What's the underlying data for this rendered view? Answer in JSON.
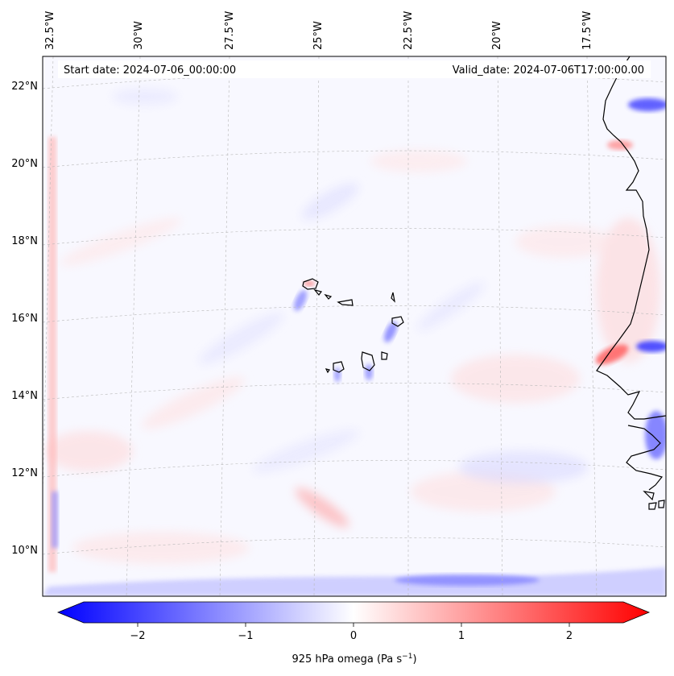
{
  "header": {
    "start_date": "Start date: 2024-07-06_00:00:00",
    "valid_date": "Valid_date: 2024-07-06T17:00:00.00"
  },
  "map": {
    "projection": "conic",
    "lon_labels": [
      "32.5°W",
      "30°W",
      "27.5°W",
      "25°W",
      "22.5°W",
      "20°W",
      "17.5°W"
    ],
    "lat_labels": [
      "22°N",
      "20°N",
      "18°N",
      "16°N",
      "14°N",
      "12°N",
      "10°N"
    ],
    "gridlines": "dashed",
    "field": "925 hPa omega",
    "features": [
      "Cabo Verde islands",
      "West African coastline (Mauritania, Senegal, Gambia, Guinea-Bissau)"
    ]
  },
  "colorbar": {
    "label_prefix": "925 hPa omega (Pa s",
    "label_sup": "−1",
    "label_suffix": ")",
    "ticks": [
      "−2",
      "−1",
      "0",
      "1",
      "2"
    ],
    "tick_values": [
      -2,
      -1,
      0,
      1,
      2
    ],
    "vmin": -2.5,
    "vmax": 2.5,
    "extend": "both",
    "cmap": "bwr",
    "colors": {
      "low": "#0000ff",
      "mid": "#ffffff",
      "high": "#ff0000"
    }
  }
}
